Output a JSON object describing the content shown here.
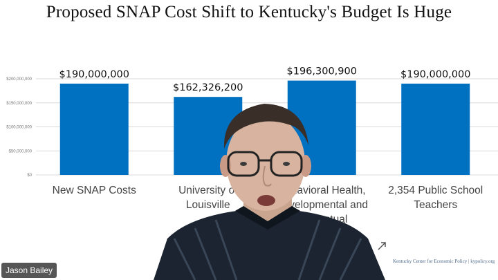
{
  "slide": {
    "title": "Proposed SNAP Cost Shift to Kentucky's Budget Is Huge",
    "source": "Kentucky Center for Economic Policy | kypolicy.org"
  },
  "participant": {
    "name": "Jason Bailey"
  },
  "icons": {
    "webcam_expand": "expand-arrow-icon"
  },
  "colors": {
    "bar": "#0070c0",
    "grid": "#d9d9d9"
  },
  "chart_data": {
    "type": "bar",
    "title": "Proposed SNAP Cost Shift to Kentucky's Budget Is Huge",
    "categories": [
      "New SNAP Costs",
      "University of Louisville",
      "Behavioral Health, Developmental and Intellectual",
      "2,354 Public School Teachers"
    ],
    "category_lines": [
      [
        "New SNAP Costs"
      ],
      [
        "University of",
        "Louisville"
      ],
      [
        "Behavioral Health,",
        "Developmental and",
        "Intellectual"
      ],
      [
        "2,354 Public School",
        "Teachers"
      ]
    ],
    "values": [
      190000000,
      162326200,
      196300900,
      190000000
    ],
    "data_labels": [
      "$190,000,000",
      "$162,326,200",
      "$196,300,900",
      "$190,000,000"
    ],
    "yticks": [
      "$0",
      "$50,000,000",
      "$100,000,000",
      "$150,000,000",
      "$200,000,000"
    ],
    "ytick_values": [
      0,
      50000000,
      100000000,
      150000000,
      200000000
    ],
    "ylim": [
      0,
      200000000
    ],
    "xlabel": "",
    "ylabel": "",
    "grid": true
  }
}
